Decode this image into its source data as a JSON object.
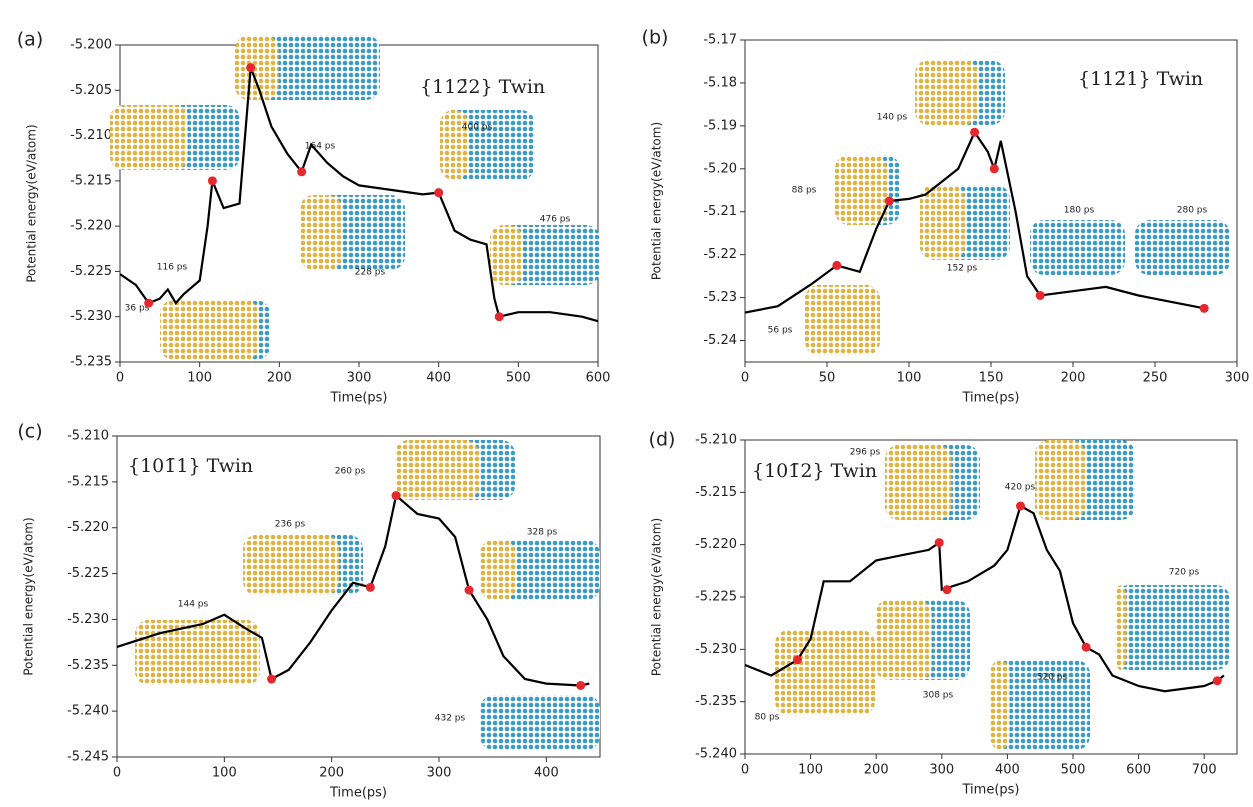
{
  "chart_data": [
    {
      "type": "line",
      "label": "(a)",
      "annotation": "{112̄2} Twin",
      "xlabel": "Time(ps)",
      "ylabel": "Potential energy(eV/atom)",
      "xlim": [
        0,
        600
      ],
      "xticks": [
        0,
        100,
        200,
        300,
        400,
        500,
        600
      ],
      "ylim": [
        -5.235,
        -5.2
      ],
      "yticks": [
        {
          "value": -5.235,
          "label": "-5.235"
        },
        {
          "value": -5.23,
          "label": "-5.230"
        },
        {
          "value": -5.225,
          "label": "-5.225"
        },
        {
          "value": -5.22,
          "label": "-5.220"
        },
        {
          "value": -5.215,
          "label": "-5.215"
        },
        {
          "value": -5.21,
          "label": "-5.210"
        },
        {
          "value": -5.205,
          "label": "-5.205"
        },
        {
          "value": -5.2,
          "label": "-5.200"
        }
      ],
      "x": [
        0,
        20,
        36,
        50,
        60,
        70,
        80,
        100,
        110,
        116,
        130,
        150,
        164,
        175,
        190,
        210,
        228,
        240,
        260,
        280,
        300,
        340,
        380,
        400,
        420,
        440,
        460,
        470,
        476,
        500,
        540,
        580,
        600
      ],
      "values": [
        -5.2253,
        -5.2265,
        -5.2285,
        -5.228,
        -5.227,
        -5.2285,
        -5.2275,
        -5.226,
        -5.22,
        -5.215,
        -5.218,
        -5.2175,
        -5.2025,
        -5.205,
        -5.209,
        -5.212,
        -5.214,
        -5.211,
        -5.213,
        -5.2145,
        -5.2155,
        -5.216,
        -5.2165,
        -5.2163,
        -5.2205,
        -5.2215,
        -5.222,
        -5.228,
        -5.23,
        -5.2295,
        -5.2295,
        -5.23,
        -5.2305
      ],
      "color": "#000000",
      "highlight": {
        "color": "#e8262d",
        "x": [
          36,
          116,
          164,
          228,
          400,
          476
        ],
        "values": [
          -5.2285,
          -5.215,
          -5.2025,
          -5.214,
          -5.2163,
          -5.23
        ]
      },
      "snapshot_labels": [
        "36 ps",
        "116 ps",
        "164 ps",
        "228 ps",
        "400 ps",
        "476 ps"
      ]
    },
    {
      "type": "line",
      "label": "(b)",
      "annotation": "{112̄1} Twin",
      "xlabel": "Time(ps)",
      "ylabel": "Potential energy(eV/atom)",
      "xlim": [
        0,
        300
      ],
      "xticks": [
        0,
        50,
        100,
        150,
        200,
        250,
        300
      ],
      "ylim": [
        -5.245,
        -5.17
      ],
      "yticks": [
        {
          "value": -5.24,
          "label": "-5.24"
        },
        {
          "value": -5.23,
          "label": "-5.23"
        },
        {
          "value": -5.22,
          "label": "-5.22"
        },
        {
          "value": -5.21,
          "label": "-5.21"
        },
        {
          "value": -5.2,
          "label": "-5.20"
        },
        {
          "value": -5.19,
          "label": "-5.19"
        },
        {
          "value": -5.18,
          "label": "-5.18"
        },
        {
          "value": -5.17,
          "label": "-5.17"
        }
      ],
      "x": [
        0,
        20,
        40,
        56,
        70,
        80,
        88,
        100,
        110,
        120,
        130,
        140,
        148,
        152,
        156,
        165,
        172,
        180,
        200,
        220,
        240,
        260,
        280
      ],
      "values": [
        -5.2335,
        -5.232,
        -5.227,
        -5.2225,
        -5.224,
        -5.214,
        -5.2075,
        -5.207,
        -5.206,
        -5.203,
        -5.2,
        -5.1915,
        -5.196,
        -5.2,
        -5.1935,
        -5.21,
        -5.225,
        -5.2295,
        -5.2285,
        -5.2275,
        -5.2295,
        -5.231,
        -5.2325
      ],
      "color": "#000000",
      "highlight": {
        "color": "#e8262d",
        "x": [
          56,
          88,
          140,
          152,
          180,
          280
        ],
        "values": [
          -5.2225,
          -5.2075,
          -5.1915,
          -5.2,
          -5.2295,
          -5.2325
        ]
      },
      "snapshot_labels": [
        "56 ps",
        "88 ps",
        "140 ps",
        "152 ps",
        "180 ps",
        "280 ps"
      ]
    },
    {
      "type": "line",
      "label": "(c)",
      "annotation": "{101̄1} Twin",
      "xlabel": "Time(ps)",
      "ylabel": "Potential energy(eV/atom)",
      "xlim": [
        0,
        450
      ],
      "xticks": [
        0,
        100,
        200,
        300,
        400
      ],
      "ylim": [
        -5.245,
        -5.21
      ],
      "yticks": [
        {
          "value": -5.245,
          "label": "-5.245"
        },
        {
          "value": -5.24,
          "label": "-5.240"
        },
        {
          "value": -5.235,
          "label": "-5.235"
        },
        {
          "value": -5.23,
          "label": "-5.230"
        },
        {
          "value": -5.225,
          "label": "-5.225"
        },
        {
          "value": -5.22,
          "label": "-5.220"
        },
        {
          "value": -5.215,
          "label": "-5.215"
        },
        {
          "value": -5.21,
          "label": "-5.210"
        }
      ],
      "x": [
        0,
        40,
        80,
        100,
        120,
        135,
        144,
        160,
        180,
        200,
        220,
        236,
        250,
        260,
        280,
        300,
        315,
        328,
        345,
        360,
        380,
        400,
        432,
        440
      ],
      "values": [
        -5.233,
        -5.2315,
        -5.2305,
        -5.2295,
        -5.231,
        -5.232,
        -5.2365,
        -5.2355,
        -5.2325,
        -5.229,
        -5.226,
        -5.2265,
        -5.222,
        -5.2165,
        -5.2185,
        -5.219,
        -5.221,
        -5.2268,
        -5.23,
        -5.234,
        -5.2365,
        -5.237,
        -5.2372,
        -5.237
      ],
      "color": "#000000",
      "highlight": {
        "color": "#e8262d",
        "x": [
          144,
          236,
          260,
          328,
          432
        ],
        "values": [
          -5.2365,
          -5.2265,
          -5.2165,
          -5.2268,
          -5.2372
        ]
      },
      "snapshot_labels": [
        "144 ps",
        "236 ps",
        "260 ps",
        "328 ps",
        "432 ps"
      ]
    },
    {
      "type": "line",
      "label": "(d)",
      "annotation": "{101̄2} Twin",
      "xlabel": "Time(ps)",
      "ylabel": "Potential energy(eV/atom)",
      "xlim": [
        0,
        750
      ],
      "xticks": [
        0,
        100,
        200,
        300,
        400,
        500,
        600,
        700
      ],
      "ylim": [
        -5.24,
        -5.21
      ],
      "yticks": [
        {
          "value": -5.24,
          "label": "-5.240"
        },
        {
          "value": -5.235,
          "label": "-5.235"
        },
        {
          "value": -5.23,
          "label": "-5.230"
        },
        {
          "value": -5.225,
          "label": "-5.225"
        },
        {
          "value": -5.22,
          "label": "-5.220"
        },
        {
          "value": -5.215,
          "label": "-5.215"
        },
        {
          "value": -5.21,
          "label": "-5.210"
        }
      ],
      "x": [
        0,
        40,
        80,
        100,
        120,
        160,
        200,
        240,
        280,
        296,
        300,
        340,
        380,
        400,
        420,
        440,
        460,
        480,
        500,
        520,
        540,
        560,
        600,
        640,
        700,
        720,
        730
      ],
      "values": [
        -5.2315,
        -5.2325,
        -5.231,
        -5.229,
        -5.2235,
        -5.2235,
        -5.2215,
        -5.221,
        -5.2205,
        -5.2198,
        -5.2243,
        -5.2235,
        -5.222,
        -5.2205,
        -5.2163,
        -5.217,
        -5.2205,
        -5.2225,
        -5.2275,
        -5.2298,
        -5.2305,
        -5.2325,
        -5.2335,
        -5.234,
        -5.2335,
        -5.233,
        -5.2325
      ],
      "color": "#000000",
      "highlight": {
        "color": "#e8262d",
        "x": [
          80,
          296,
          308,
          420,
          520,
          720
        ],
        "values": [
          -5.231,
          -5.2198,
          -5.2243,
          -5.2163,
          -5.2298,
          -5.233
        ]
      },
      "snapshot_labels": [
        "80 ps",
        "296 ps",
        "308 ps",
        "420 ps",
        "520 ps",
        "720 ps"
      ]
    }
  ]
}
